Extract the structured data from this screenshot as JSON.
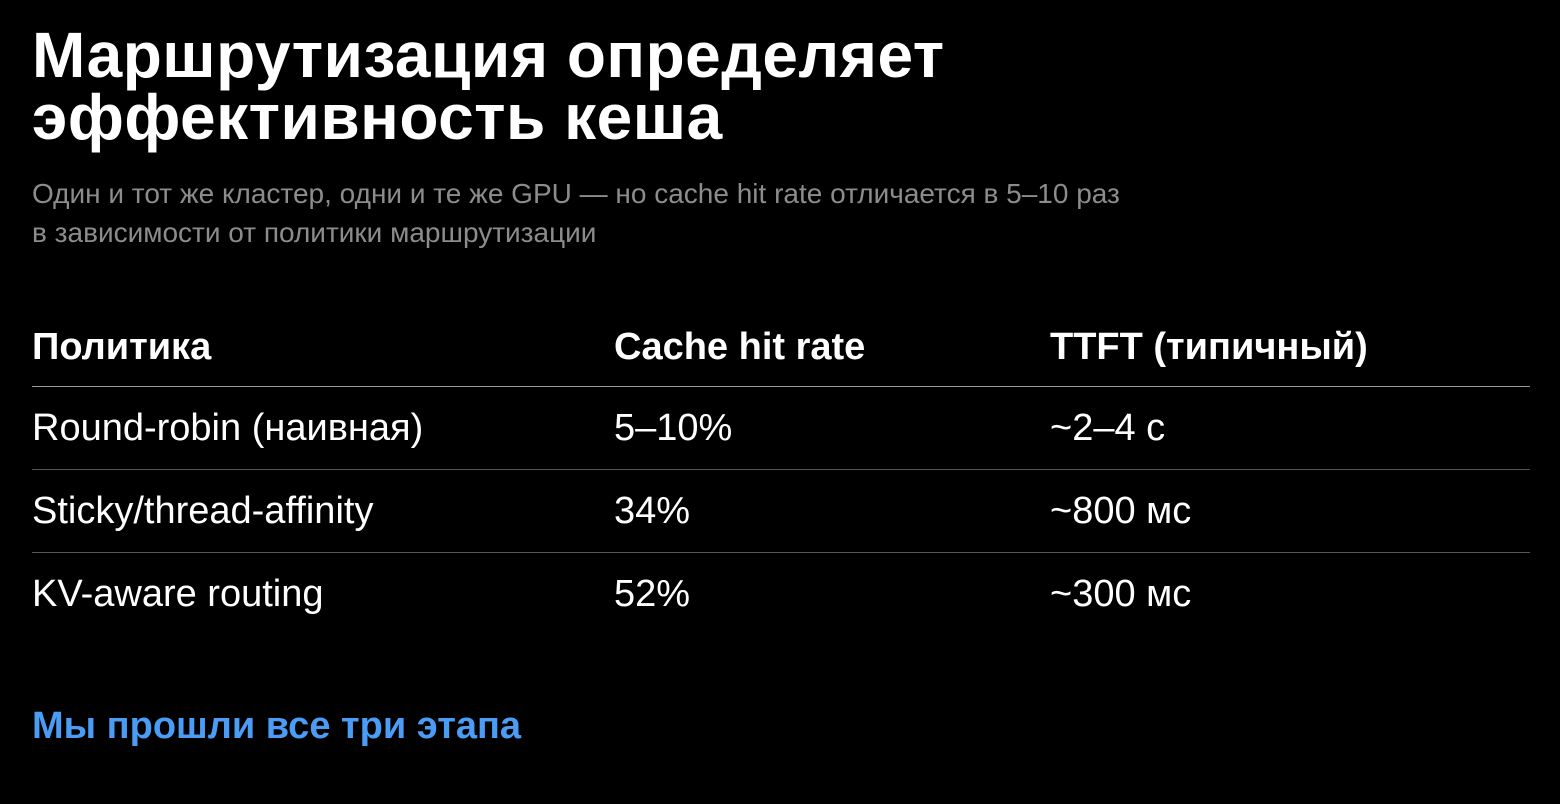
{
  "header": {
    "title": "Маршрутизация определяет эффективность кеша",
    "subtitle": "Один и тот же кластер, одни и те же GPU — но cache hit rate отличается в 5–10 раз в зависимости от политики маршрутизации"
  },
  "table": {
    "columns": [
      "Политика",
      "Cache hit rate",
      "TTFT (типичный)"
    ],
    "rows": [
      [
        "Round-robin (наивная)",
        "5–10%",
        "~2–4 с"
      ],
      [
        "Sticky/thread-affinity",
        "34%",
        "~800 мс"
      ],
      [
        "KV-aware routing",
        "52%",
        "~300 мс"
      ]
    ]
  },
  "footer": {
    "link": "Мы прошли все три этапа"
  }
}
